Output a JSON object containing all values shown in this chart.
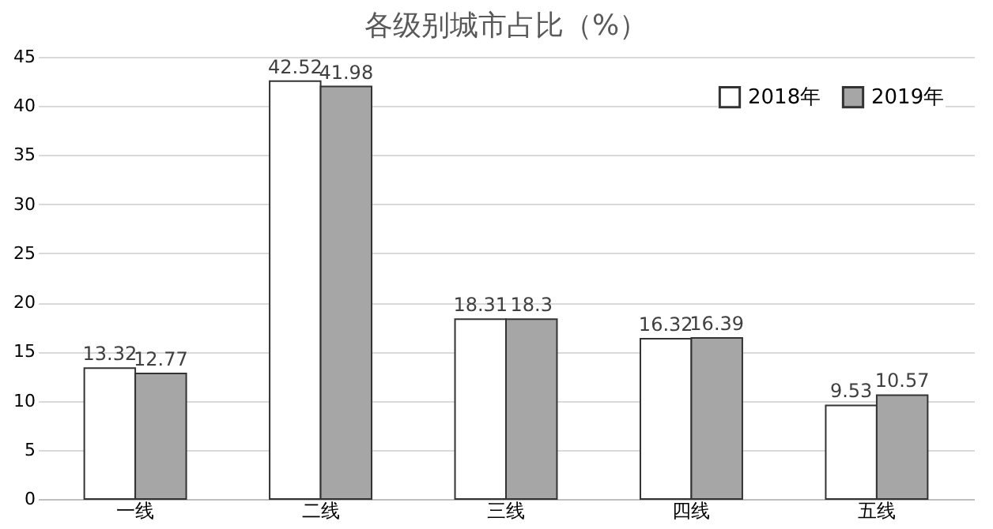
{
  "chart_data": {
    "type": "bar",
    "title": "各级别城市占比（%）",
    "categories": [
      "一线",
      "二线",
      "三线",
      "四线",
      "五线"
    ],
    "series": [
      {
        "name": "2018年",
        "color": "#ffffff",
        "values": [
          13.32,
          42.52,
          18.31,
          16.32,
          9.53
        ]
      },
      {
        "name": "2019年",
        "color": "#a6a6a6",
        "values": [
          12.77,
          41.98,
          18.3,
          16.39,
          10.57
        ]
      }
    ],
    "ylim": [
      0,
      45
    ],
    "yticks": [
      0,
      5,
      10,
      15,
      20,
      25,
      30,
      35,
      40,
      45
    ],
    "grid": "y",
    "legend": "top right",
    "data_labels": true
  }
}
